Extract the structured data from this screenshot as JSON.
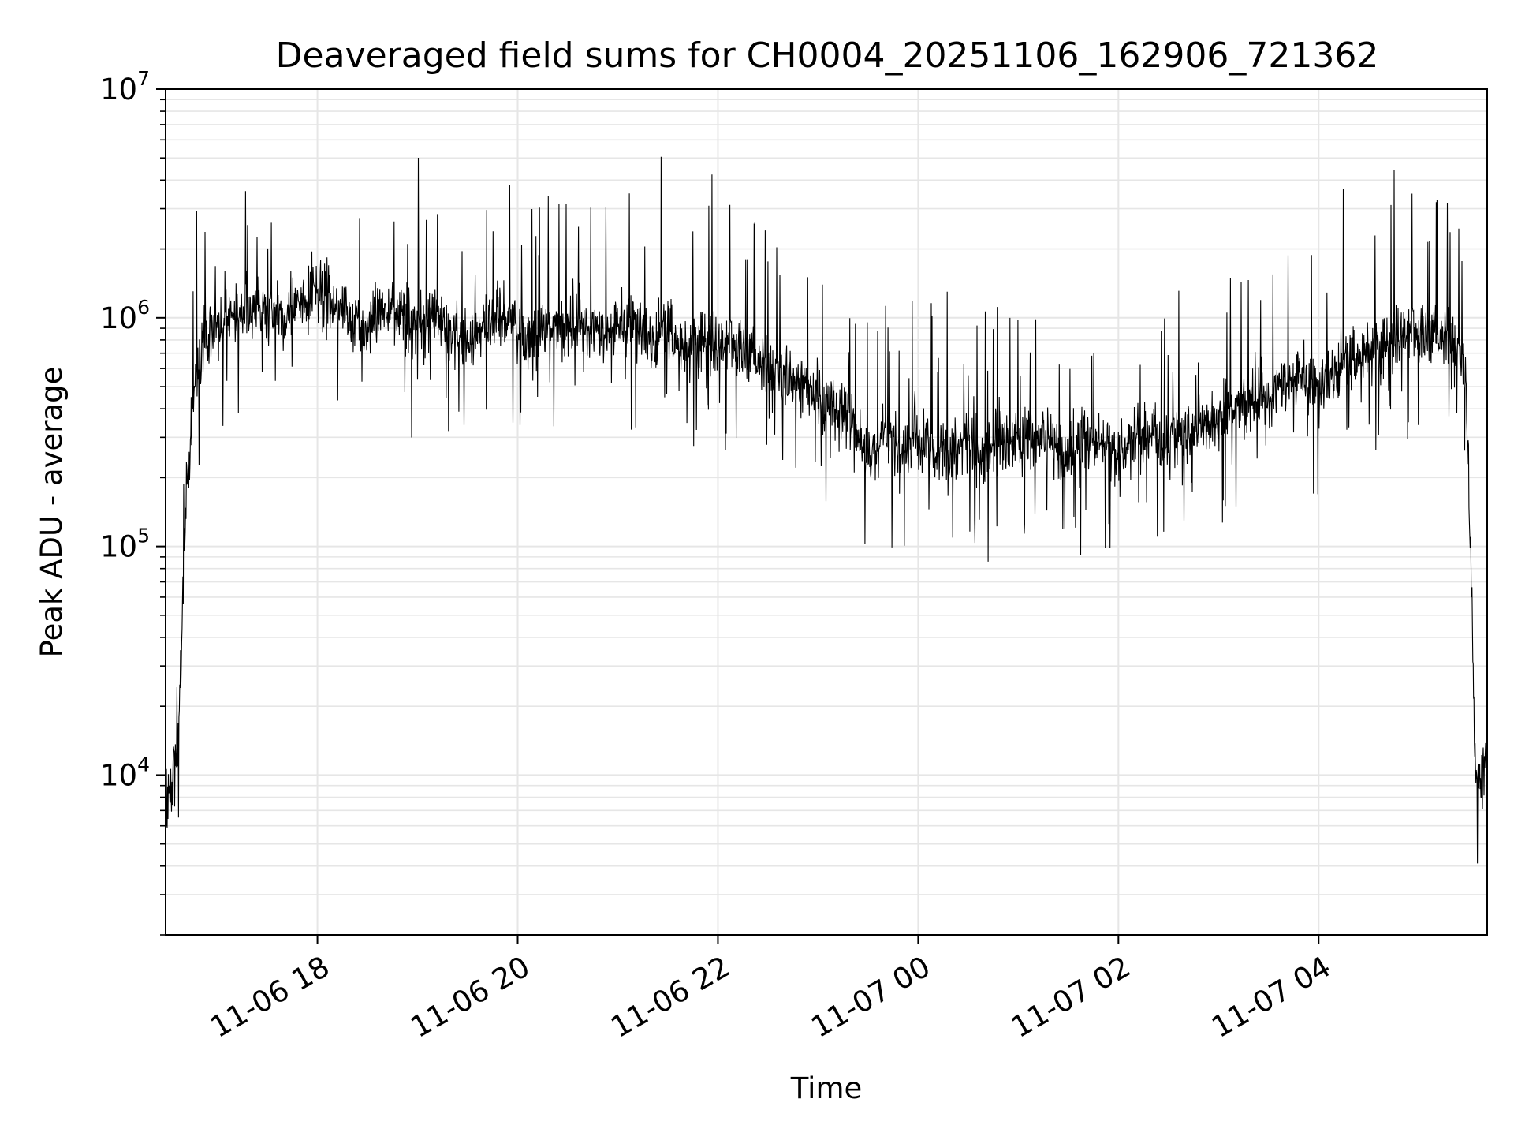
{
  "chart_data": {
    "type": "line",
    "title": "Deaveraged field sums for CH0004_20251106_162906_721362",
    "xlabel": "Time",
    "ylabel": "Peak ADU - average",
    "yscale": "log",
    "ylim": [
      2000,
      10000000
    ],
    "xlim": [
      "2025-11-06 16:29",
      "2025-11-07 05:41"
    ],
    "grid": true,
    "line_color": "#000000",
    "x_ticks": [
      {
        "value": "2025-11-06 18:00",
        "label": "11-06 18"
      },
      {
        "value": "2025-11-06 20:00",
        "label": "11-06 20"
      },
      {
        "value": "2025-11-06 22:00",
        "label": "11-06 22"
      },
      {
        "value": "2025-11-07 00:00",
        "label": "11-07 00"
      },
      {
        "value": "2025-11-07 02:00",
        "label": "11-07 02"
      },
      {
        "value": "2025-11-07 04:00",
        "label": "11-07 04"
      }
    ],
    "y_ticks": [
      {
        "value": 10000,
        "base": "10",
        "exp": "4"
      },
      {
        "value": 100000,
        "base": "10",
        "exp": "5"
      },
      {
        "value": 1000000,
        "base": "10",
        "exp": "6"
      },
      {
        "value": 10000000,
        "base": "10",
        "exp": "7"
      }
    ],
    "series": [
      {
        "x": [
          "2025-11-06 16:29",
          "2025-11-06 16:33",
          "2025-11-06 16:37",
          "2025-11-06 16:41",
          "2025-11-06 16:45",
          "2025-11-06 16:50",
          "2025-11-06 16:55",
          "2025-11-06 17:00",
          "2025-11-06 17:10",
          "2025-11-06 17:20",
          "2025-11-06 17:30",
          "2025-11-06 17:40",
          "2025-11-06 17:50",
          "2025-11-06 18:00",
          "2025-11-06 18:10",
          "2025-11-06 18:20",
          "2025-11-06 18:30",
          "2025-11-06 18:40",
          "2025-11-06 18:50",
          "2025-11-06 19:00",
          "2025-11-06 19:10",
          "2025-11-06 19:20",
          "2025-11-06 19:30",
          "2025-11-06 19:40",
          "2025-11-06 19:50",
          "2025-11-06 20:00",
          "2025-11-06 20:10",
          "2025-11-06 20:20",
          "2025-11-06 20:30",
          "2025-11-06 20:40",
          "2025-11-06 20:50",
          "2025-11-06 21:00",
          "2025-11-06 21:10",
          "2025-11-06 21:20",
          "2025-11-06 21:30",
          "2025-11-06 21:40",
          "2025-11-06 21:50",
          "2025-11-06 22:00",
          "2025-11-06 22:10",
          "2025-11-06 22:20",
          "2025-11-06 22:30",
          "2025-11-06 22:40",
          "2025-11-06 22:50",
          "2025-11-06 23:00",
          "2025-11-06 23:10",
          "2025-11-06 23:20",
          "2025-11-06 23:30",
          "2025-11-06 23:40",
          "2025-11-06 23:50",
          "2025-11-07 00:00",
          "2025-11-07 00:10",
          "2025-11-07 00:20",
          "2025-11-07 00:30",
          "2025-11-07 00:40",
          "2025-11-07 00:50",
          "2025-11-07 01:00",
          "2025-11-07 01:10",
          "2025-11-07 01:20",
          "2025-11-07 01:30",
          "2025-11-07 01:40",
          "2025-11-07 01:50",
          "2025-11-07 02:00",
          "2025-11-07 02:10",
          "2025-11-07 02:20",
          "2025-11-07 02:30",
          "2025-11-07 02:40",
          "2025-11-07 02:50",
          "2025-11-07 03:00",
          "2025-11-07 03:10",
          "2025-11-07 03:20",
          "2025-11-07 03:30",
          "2025-11-07 03:40",
          "2025-11-07 03:50",
          "2025-11-07 04:00",
          "2025-11-07 04:10",
          "2025-11-07 04:20",
          "2025-11-07 04:30",
          "2025-11-07 04:40",
          "2025-11-07 04:50",
          "2025-11-07 05:00",
          "2025-11-07 05:10",
          "2025-11-07 05:20",
          "2025-11-07 05:28",
          "2025-11-07 05:31",
          "2025-11-07 05:34",
          "2025-11-07 05:37",
          "2025-11-07 05:41"
        ],
        "y": [
          8000,
          9000,
          15000,
          150000,
          400000,
          700000,
          900000,
          900000,
          1000000,
          1100000,
          1100000,
          1000000,
          1200000,
          1300000,
          1100000,
          1000000,
          900000,
          1100000,
          1000000,
          900000,
          1000000,
          900000,
          800000,
          900000,
          1000000,
          850000,
          800000,
          900000,
          950000,
          850000,
          800000,
          900000,
          1000000,
          800000,
          900000,
          700000,
          800000,
          750000,
          800000,
          700000,
          600000,
          550000,
          500000,
          450000,
          400000,
          350000,
          250000,
          300000,
          250000,
          300000,
          250000,
          250000,
          300000,
          250000,
          300000,
          280000,
          300000,
          280000,
          250000,
          300000,
          280000,
          250000,
          300000,
          300000,
          280000,
          300000,
          320000,
          350000,
          400000,
          450000,
          400000,
          500000,
          550000,
          500000,
          600000,
          650000,
          700000,
          750000,
          850000,
          900000,
          850000,
          800000,
          600000,
          100000,
          10000,
          9000,
          12000
        ]
      }
    ]
  }
}
